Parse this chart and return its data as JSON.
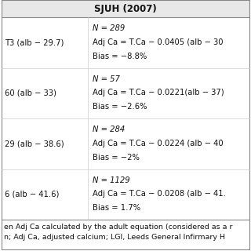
{
  "title": "SJUH (2007)",
  "title_bg": "#e8e8e8",
  "table_bg": "#ffffff",
  "rows": [
    {
      "left": "T3 (alb − 29.7)",
      "right_lines": [
        "N = 289",
        "Adj Ca = T.Ca − 0.0405 (alb − 30",
        "Bias = −8.8%"
      ]
    },
    {
      "left": "60 (alb − 33)",
      "right_lines": [
        "N = 57",
        "Adj Ca = T.Ca − 0.0221(alb − 37)",
        "Bias = −2.6%"
      ]
    },
    {
      "left": "29 (alb − 38.6)",
      "right_lines": [
        "N = 284",
        "Adj Ca = T.Ca − 0.0224 (alb − 40",
        "Bias = −2%"
      ]
    },
    {
      "left": "6 (alb − 41.6)",
      "right_lines": [
        "N = 1129",
        "Adj Ca = T.Ca − 0.0208 (alb − 41.",
        "Bias = 1.7%"
      ]
    }
  ],
  "footer_lines": [
    "en Adj Ca calculated by the adult equation (considered as a r",
    "n; Adj Ca, adjusted calcium; LGI, Leeds General Infirmary H"
  ],
  "font_size": 7.2,
  "title_font_size": 8.5,
  "footer_font_size": 6.8
}
